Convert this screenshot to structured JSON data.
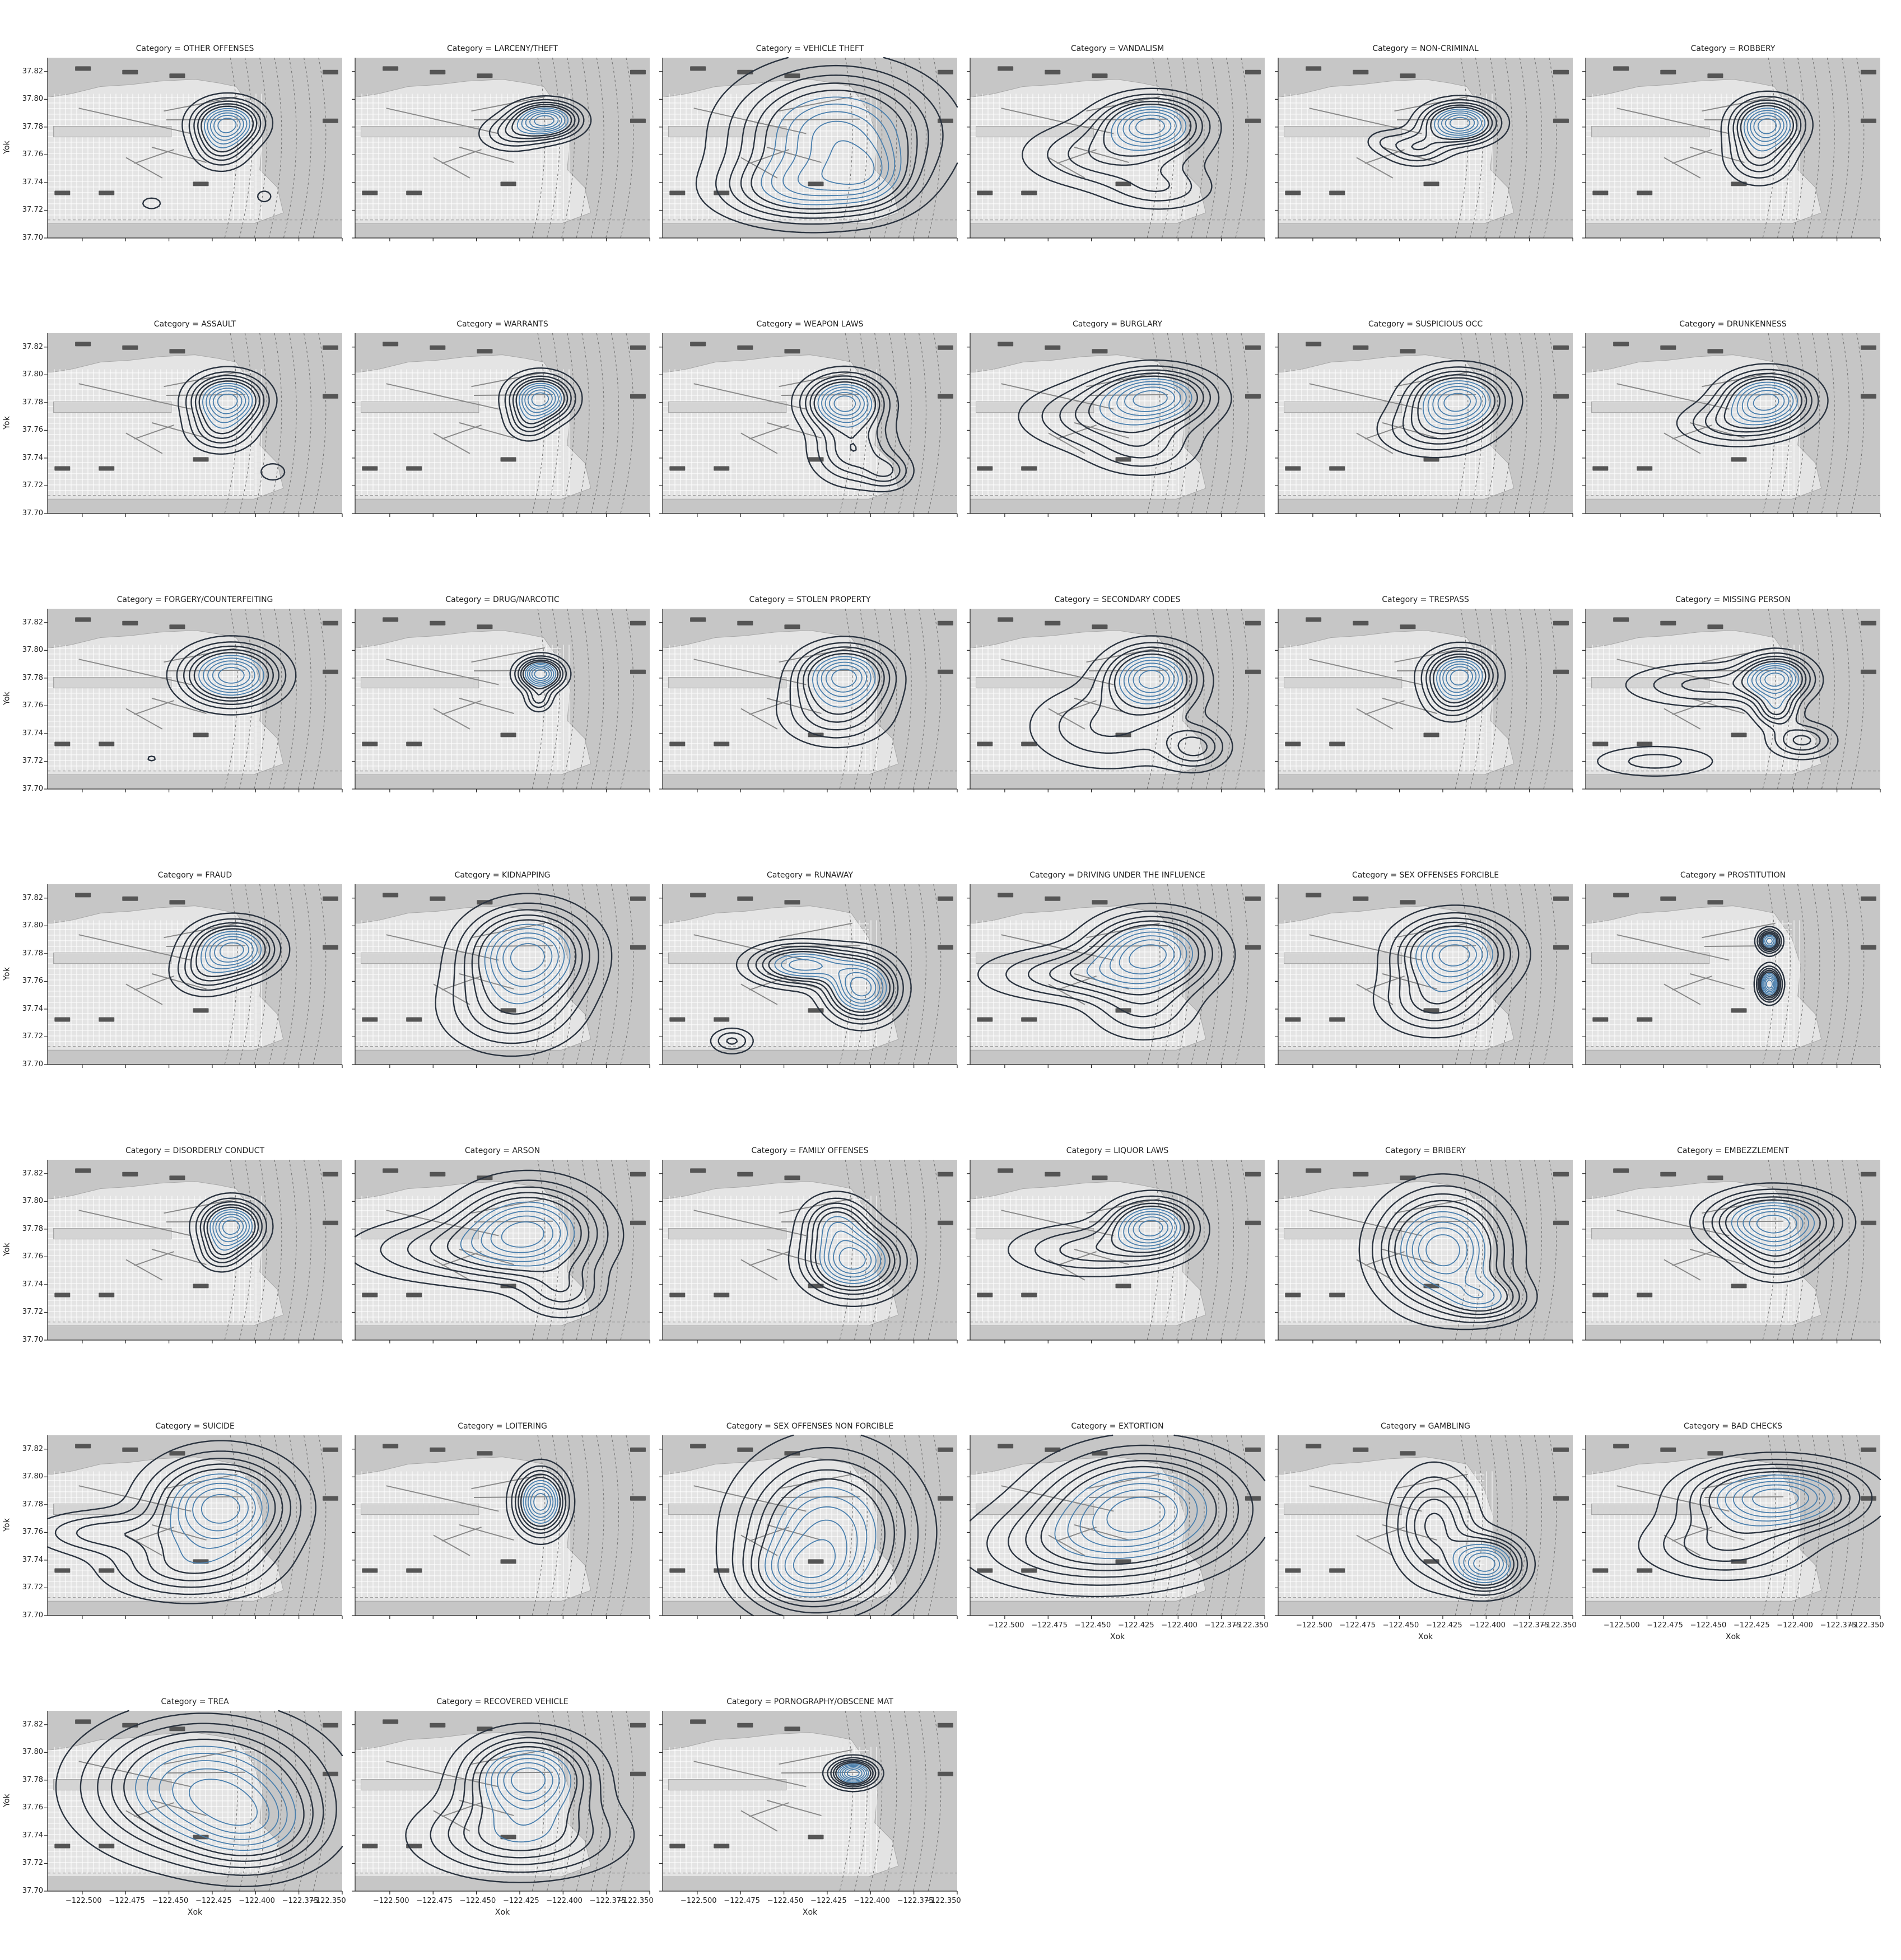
{
  "figure": {
    "x_axis_label": "Xok",
    "y_axis_label": "Yok",
    "accent_colors": {
      "outer_contour": "#2b3440",
      "inner_contour": "#4a7fad",
      "map_bg": "#c6c6c6",
      "map_land": "#e4e4e4"
    }
  },
  "chart_data": {
    "type": "kde_contour_grid",
    "facet_variable": "Category",
    "title_prefix": "Category = ",
    "xlim": [
      -122.52,
      -122.35
    ],
    "ylim": [
      37.7,
      37.83
    ],
    "xticks": [
      -122.5,
      -122.475,
      -122.45,
      -122.425,
      -122.4,
      -122.375,
      -122.35
    ],
    "xtick_labels": [
      "−122.500",
      "−122.475",
      "−122.450",
      "−122.425",
      "−122.400",
      "−122.375",
      "−122.350"
    ],
    "yticks": [
      37.7,
      37.72,
      37.74,
      37.76,
      37.78,
      37.8,
      37.82
    ],
    "ytick_labels": [
      "37.70",
      "37.72",
      "37.74",
      "37.76",
      "37.78",
      "37.80",
      "37.82"
    ],
    "panels": [
      {
        "category": "OTHER OFFENSES",
        "peaks": [
          {
            "x": -122.416,
            "y": 37.783,
            "sx": 0.012,
            "sy": 0.01,
            "w": 1.0
          },
          {
            "x": -122.42,
            "y": 37.765,
            "sx": 0.01,
            "sy": 0.01,
            "w": 0.4
          },
          {
            "x": -122.46,
            "y": 37.725,
            "sx": 0.008,
            "sy": 0.006,
            "w": 0.12
          },
          {
            "x": -122.395,
            "y": 37.73,
            "sx": 0.006,
            "sy": 0.006,
            "w": 0.12
          }
        ]
      },
      {
        "category": "LARCENY/THEFT",
        "peaks": [
          {
            "x": -122.41,
            "y": 37.785,
            "sx": 0.012,
            "sy": 0.008,
            "w": 1.0
          },
          {
            "x": -122.43,
            "y": 37.775,
            "sx": 0.012,
            "sy": 0.008,
            "w": 0.3
          }
        ]
      },
      {
        "category": "VEHICLE THEFT",
        "peaks": [
          {
            "x": -122.42,
            "y": 37.775,
            "sx": 0.035,
            "sy": 0.028,
            "w": 1.0
          },
          {
            "x": -122.44,
            "y": 37.735,
            "sx": 0.03,
            "sy": 0.015,
            "w": 0.6
          },
          {
            "x": -122.4,
            "y": 37.745,
            "sx": 0.015,
            "sy": 0.015,
            "w": 0.4
          }
        ]
      },
      {
        "category": "VANDALISM",
        "peaks": [
          {
            "x": -122.415,
            "y": 37.782,
            "sx": 0.018,
            "sy": 0.012,
            "w": 1.0
          },
          {
            "x": -122.44,
            "y": 37.76,
            "sx": 0.03,
            "sy": 0.015,
            "w": 0.4
          },
          {
            "x": -122.41,
            "y": 37.735,
            "sx": 0.02,
            "sy": 0.01,
            "w": 0.25
          }
        ]
      },
      {
        "category": "NON-CRIMINAL",
        "peaks": [
          {
            "x": -122.415,
            "y": 37.783,
            "sx": 0.013,
            "sy": 0.009,
            "w": 1.0
          },
          {
            "x": -122.44,
            "y": 37.765,
            "sx": 0.012,
            "sy": 0.008,
            "w": 0.35
          },
          {
            "x": -122.46,
            "y": 37.77,
            "sx": 0.008,
            "sy": 0.006,
            "w": 0.12
          }
        ]
      },
      {
        "category": "ROBBERY",
        "peaks": [
          {
            "x": -122.415,
            "y": 37.782,
            "sx": 0.012,
            "sy": 0.011,
            "w": 1.0
          },
          {
            "x": -122.42,
            "y": 37.758,
            "sx": 0.012,
            "sy": 0.012,
            "w": 0.4
          }
        ]
      },
      {
        "category": "ASSAULT",
        "peaks": [
          {
            "x": -122.416,
            "y": 37.782,
            "sx": 0.013,
            "sy": 0.011,
            "w": 1.0
          },
          {
            "x": -122.42,
            "y": 37.76,
            "sx": 0.012,
            "sy": 0.01,
            "w": 0.4
          },
          {
            "x": -122.39,
            "y": 37.73,
            "sx": 0.007,
            "sy": 0.006,
            "w": 0.15
          }
        ]
      },
      {
        "category": "WARRANTS",
        "peaks": [
          {
            "x": -122.413,
            "y": 37.783,
            "sx": 0.011,
            "sy": 0.01,
            "w": 1.0
          },
          {
            "x": -122.42,
            "y": 37.765,
            "sx": 0.008,
            "sy": 0.008,
            "w": 0.3
          }
        ]
      },
      {
        "category": "WEAPON LAWS",
        "peaks": [
          {
            "x": -122.415,
            "y": 37.78,
            "sx": 0.014,
            "sy": 0.012,
            "w": 1.0
          },
          {
            "x": -122.41,
            "y": 37.745,
            "sx": 0.015,
            "sy": 0.015,
            "w": 0.45
          },
          {
            "x": -122.39,
            "y": 37.73,
            "sx": 0.009,
            "sy": 0.008,
            "w": 0.3
          }
        ]
      },
      {
        "category": "BURGLARY",
        "peaks": [
          {
            "x": -122.413,
            "y": 37.785,
            "sx": 0.02,
            "sy": 0.012,
            "w": 1.0
          },
          {
            "x": -122.44,
            "y": 37.77,
            "sx": 0.03,
            "sy": 0.015,
            "w": 0.5
          },
          {
            "x": -122.42,
            "y": 37.745,
            "sx": 0.02,
            "sy": 0.012,
            "w": 0.3
          }
        ]
      },
      {
        "category": "SUSPICIOUS OCC",
        "peaks": [
          {
            "x": -122.416,
            "y": 37.782,
            "sx": 0.017,
            "sy": 0.013,
            "w": 1.0
          },
          {
            "x": -122.43,
            "y": 37.76,
            "sx": 0.02,
            "sy": 0.012,
            "w": 0.35
          }
        ]
      },
      {
        "category": "DRUNKENNESS",
        "peaks": [
          {
            "x": -122.415,
            "y": 37.782,
            "sx": 0.016,
            "sy": 0.012,
            "w": 1.0
          },
          {
            "x": -122.435,
            "y": 37.765,
            "sx": 0.02,
            "sy": 0.01,
            "w": 0.35
          }
        ]
      },
      {
        "category": "FORGERY/COUNTERFEITING",
        "peaks": [
          {
            "x": -122.414,
            "y": 37.782,
            "sx": 0.017,
            "sy": 0.013,
            "w": 1.0
          },
          {
            "x": -122.46,
            "y": 37.722,
            "sx": 0.005,
            "sy": 0.004,
            "w": 0.1
          }
        ]
      },
      {
        "category": "DRUG/NARCOTIC",
        "peaks": [
          {
            "x": -122.413,
            "y": 37.783,
            "sx": 0.008,
            "sy": 0.007,
            "w": 1.0
          },
          {
            "x": -122.414,
            "y": 37.765,
            "sx": 0.005,
            "sy": 0.006,
            "w": 0.3
          }
        ]
      },
      {
        "category": "STOLEN PROPERTY",
        "peaks": [
          {
            "x": -122.415,
            "y": 37.782,
            "sx": 0.016,
            "sy": 0.013,
            "w": 1.0
          },
          {
            "x": -122.42,
            "y": 37.755,
            "sx": 0.02,
            "sy": 0.015,
            "w": 0.4
          }
        ]
      },
      {
        "category": "SECONDARY CODES",
        "peaks": [
          {
            "x": -122.415,
            "y": 37.78,
            "sx": 0.016,
            "sy": 0.014,
            "w": 1.0
          },
          {
            "x": -122.39,
            "y": 37.73,
            "sx": 0.012,
            "sy": 0.01,
            "w": 0.4
          },
          {
            "x": -122.44,
            "y": 37.745,
            "sx": 0.03,
            "sy": 0.02,
            "w": 0.3
          }
        ]
      },
      {
        "category": "TRESPASS",
        "peaks": [
          {
            "x": -122.415,
            "y": 37.782,
            "sx": 0.012,
            "sy": 0.011,
            "w": 1.0
          },
          {
            "x": -122.42,
            "y": 37.764,
            "sx": 0.01,
            "sy": 0.01,
            "w": 0.3
          }
        ]
      },
      {
        "category": "MISSING PERSON",
        "peaks": [
          {
            "x": -122.41,
            "y": 37.78,
            "sx": 0.012,
            "sy": 0.01,
            "w": 1.0
          },
          {
            "x": -122.41,
            "y": 37.757,
            "sx": 0.008,
            "sy": 0.008,
            "w": 0.5
          },
          {
            "x": -122.395,
            "y": 37.735,
            "sx": 0.012,
            "sy": 0.008,
            "w": 0.45
          },
          {
            "x": -122.45,
            "y": 37.775,
            "sx": 0.03,
            "sy": 0.01,
            "w": 0.35
          },
          {
            "x": -122.48,
            "y": 37.72,
            "sx": 0.025,
            "sy": 0.008,
            "w": 0.25
          }
        ]
      },
      {
        "category": "FRAUD",
        "peaks": [
          {
            "x": -122.413,
            "y": 37.783,
            "sx": 0.015,
            "sy": 0.012,
            "w": 1.0
          },
          {
            "x": -122.43,
            "y": 37.765,
            "sx": 0.012,
            "sy": 0.01,
            "w": 0.3
          }
        ]
      },
      {
        "category": "KIDNAPPING",
        "peaks": [
          {
            "x": -122.42,
            "y": 37.78,
            "sx": 0.022,
            "sy": 0.02,
            "w": 1.0
          },
          {
            "x": -122.43,
            "y": 37.74,
            "sx": 0.025,
            "sy": 0.02,
            "w": 0.4
          }
        ]
      },
      {
        "category": "RUNAWAY",
        "peaks": [
          {
            "x": -122.44,
            "y": 37.772,
            "sx": 0.018,
            "sy": 0.009,
            "w": 0.8
          },
          {
            "x": -122.405,
            "y": 37.755,
            "sx": 0.013,
            "sy": 0.014,
            "w": 1.0
          },
          {
            "x": -122.48,
            "y": 37.717,
            "sx": 0.008,
            "sy": 0.006,
            "w": 0.3
          }
        ]
      },
      {
        "category": "DRIVING UNDER THE INFLUENCE",
        "peaks": [
          {
            "x": -122.415,
            "y": 37.782,
            "sx": 0.022,
            "sy": 0.016,
            "w": 1.0
          },
          {
            "x": -122.455,
            "y": 37.765,
            "sx": 0.035,
            "sy": 0.012,
            "w": 0.45
          },
          {
            "x": -122.42,
            "y": 37.74,
            "sx": 0.02,
            "sy": 0.015,
            "w": 0.3
          }
        ]
      },
      {
        "category": "SEX OFFENSES FORCIBLE",
        "peaks": [
          {
            "x": -122.418,
            "y": 37.78,
            "sx": 0.02,
            "sy": 0.016,
            "w": 1.0
          },
          {
            "x": -122.43,
            "y": 37.745,
            "sx": 0.02,
            "sy": 0.015,
            "w": 0.4
          }
        ]
      },
      {
        "category": "PROSTITUTION",
        "peaks": [
          {
            "x": -122.414,
            "y": 37.789,
            "sx": 0.004,
            "sy": 0.005,
            "w": 0.8
          },
          {
            "x": -122.414,
            "y": 37.758,
            "sx": 0.004,
            "sy": 0.007,
            "w": 1.0
          }
        ]
      },
      {
        "category": "DISORDERLY CONDUCT",
        "peaks": [
          {
            "x": -122.414,
            "y": 37.782,
            "sx": 0.011,
            "sy": 0.011,
            "w": 1.0
          },
          {
            "x": -122.42,
            "y": 37.762,
            "sx": 0.008,
            "sy": 0.008,
            "w": 0.3
          }
        ]
      },
      {
        "category": "ARSON",
        "peaks": [
          {
            "x": -122.42,
            "y": 37.78,
            "sx": 0.025,
            "sy": 0.02,
            "w": 1.0
          },
          {
            "x": -122.46,
            "y": 37.765,
            "sx": 0.04,
            "sy": 0.015,
            "w": 0.4
          },
          {
            "x": -122.4,
            "y": 37.735,
            "sx": 0.015,
            "sy": 0.012,
            "w": 0.35
          }
        ]
      },
      {
        "category": "FAMILY OFFENSES",
        "peaks": [
          {
            "x": -122.41,
            "y": 37.757,
            "sx": 0.017,
            "sy": 0.015,
            "w": 1.0
          },
          {
            "x": -122.42,
            "y": 37.785,
            "sx": 0.012,
            "sy": 0.012,
            "w": 0.5
          }
        ]
      },
      {
        "category": "LIQUOR LAWS",
        "peaks": [
          {
            "x": -122.415,
            "y": 37.782,
            "sx": 0.015,
            "sy": 0.012,
            "w": 1.0
          },
          {
            "x": -122.45,
            "y": 37.765,
            "sx": 0.03,
            "sy": 0.012,
            "w": 0.35
          }
        ]
      },
      {
        "category": "BRIBERY",
        "peaks": [
          {
            "x": -122.425,
            "y": 37.765,
            "sx": 0.022,
            "sy": 0.025,
            "w": 1.0
          },
          {
            "x": -122.4,
            "y": 37.73,
            "sx": 0.015,
            "sy": 0.01,
            "w": 0.5
          }
        ]
      },
      {
        "category": "EMBEZZLEMENT",
        "peaks": [
          {
            "x": -122.412,
            "y": 37.785,
            "sx": 0.022,
            "sy": 0.013,
            "w": 1.0
          },
          {
            "x": -122.41,
            "y": 37.76,
            "sx": 0.015,
            "sy": 0.012,
            "w": 0.3
          }
        ]
      },
      {
        "category": "SUICIDE",
        "peaks": [
          {
            "x": -122.42,
            "y": 37.778,
            "sx": 0.025,
            "sy": 0.022,
            "w": 1.0
          },
          {
            "x": -122.49,
            "y": 37.76,
            "sx": 0.025,
            "sy": 0.01,
            "w": 0.3
          },
          {
            "x": -122.44,
            "y": 37.735,
            "sx": 0.03,
            "sy": 0.015,
            "w": 0.4
          }
        ]
      },
      {
        "category": "LOITERING",
        "peaks": [
          {
            "x": -122.413,
            "y": 37.782,
            "sx": 0.009,
            "sy": 0.014,
            "w": 1.0
          }
        ]
      },
      {
        "category": "SEX OFFENSES NON FORCIBLE",
        "peaks": [
          {
            "x": -122.425,
            "y": 37.76,
            "sx": 0.03,
            "sy": 0.035,
            "w": 1.0
          },
          {
            "x": -122.44,
            "y": 37.73,
            "sx": 0.02,
            "sy": 0.015,
            "w": 0.5
          }
        ]
      },
      {
        "category": "EXTORTION",
        "peaks": [
          {
            "x": -122.42,
            "y": 37.778,
            "sx": 0.035,
            "sy": 0.025,
            "w": 1.0
          },
          {
            "x": -122.46,
            "y": 37.75,
            "sx": 0.04,
            "sy": 0.02,
            "w": 0.4
          }
        ]
      },
      {
        "category": "GAMBLING",
        "peaks": [
          {
            "x": -122.4,
            "y": 37.737,
            "sx": 0.013,
            "sy": 0.012,
            "w": 1.0
          },
          {
            "x": -122.43,
            "y": 37.765,
            "sx": 0.015,
            "sy": 0.025,
            "w": 0.5
          }
        ]
      },
      {
        "category": "BAD CHECKS",
        "peaks": [
          {
            "x": -122.41,
            "y": 37.785,
            "sx": 0.03,
            "sy": 0.015,
            "w": 1.0
          },
          {
            "x": -122.44,
            "y": 37.75,
            "sx": 0.03,
            "sy": 0.015,
            "w": 0.35
          }
        ]
      },
      {
        "category": "TREA",
        "peaks": [
          {
            "x": -122.43,
            "y": 37.775,
            "sx": 0.04,
            "sy": 0.03,
            "w": 1.0
          },
          {
            "x": -122.4,
            "y": 37.745,
            "sx": 0.025,
            "sy": 0.02,
            "w": 0.5
          }
        ]
      },
      {
        "category": "RECOVERED VEHICLE",
        "peaks": [
          {
            "x": -122.42,
            "y": 37.782,
            "sx": 0.022,
            "sy": 0.018,
            "w": 1.0
          },
          {
            "x": -122.425,
            "y": 37.74,
            "sx": 0.035,
            "sy": 0.018,
            "w": 0.55
          }
        ]
      },
      {
        "category": "PORNOGRAPHY/OBSCENE MAT",
        "peaks": [
          {
            "x": -122.41,
            "y": 37.785,
            "sx": 0.008,
            "sy": 0.006,
            "w": 1.0
          }
        ]
      }
    ]
  }
}
